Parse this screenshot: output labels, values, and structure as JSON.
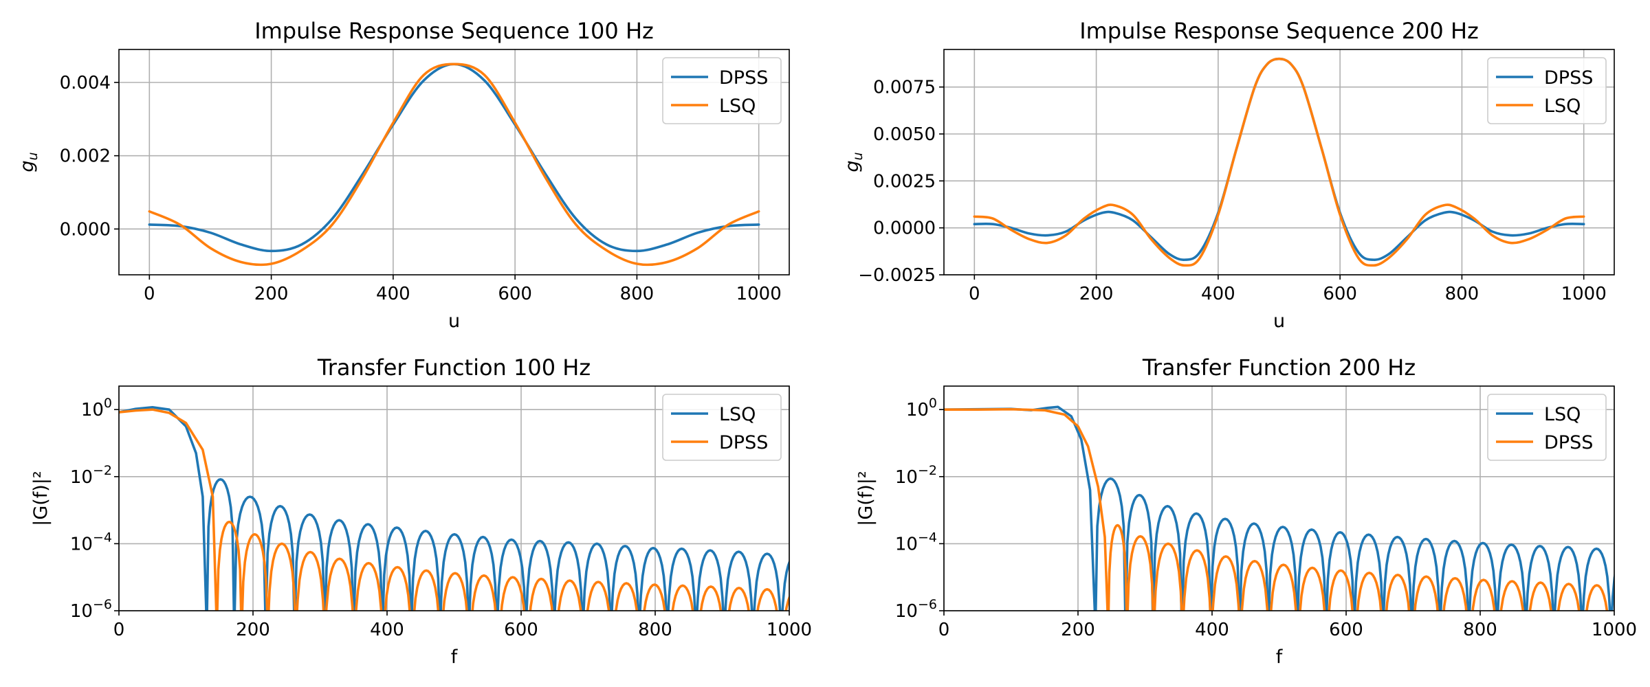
{
  "colors": {
    "blue": "#1f77b4",
    "orange": "#ff7f0e"
  },
  "chart_data": [
    {
      "id": "impulse-100",
      "type": "line",
      "title": "Impulse Response Sequence 100 Hz",
      "xlabel": "u",
      "ylabel": "g",
      "ylabel_sub": "u",
      "scale": "linear",
      "xlim": [
        -50,
        1050
      ],
      "ylim": [
        -0.00125,
        0.0049
      ],
      "xticks": [
        0,
        200,
        400,
        600,
        800,
        1000
      ],
      "xtick_labels": [
        "0",
        "200",
        "400",
        "600",
        "800",
        "1000"
      ],
      "yticks": [
        0.0,
        0.002,
        0.004
      ],
      "ytick_labels": [
        "0.000",
        "0.002",
        "0.004"
      ],
      "legend": [
        "DPSS",
        "LSQ"
      ],
      "legend_colors": [
        "#1f77b4",
        "#ff7f0e"
      ],
      "legend_loc": "upper right",
      "series": [
        {
          "name": "DPSS",
          "color": "#1f77b4",
          "x": [
            0,
            50,
            100,
            150,
            200,
            250,
            300,
            350,
            400,
            450,
            500,
            550,
            600,
            650,
            700,
            750,
            800,
            850,
            900,
            950,
            1000
          ],
          "y": [
            0.00012,
            8e-05,
            -0.0001,
            -0.00042,
            -0.0006,
            -0.00042,
            0.00028,
            0.0015,
            0.00285,
            0.00405,
            0.0045,
            0.00405,
            0.00285,
            0.0015,
            0.00028,
            -0.00042,
            -0.0006,
            -0.00042,
            -0.0001,
            8e-05,
            0.00012
          ]
        },
        {
          "name": "LSQ",
          "color": "#ff7f0e",
          "x": [
            0,
            50,
            100,
            150,
            200,
            250,
            300,
            350,
            400,
            450,
            500,
            550,
            600,
            650,
            700,
            750,
            800,
            850,
            900,
            950,
            1000
          ],
          "y": [
            0.00048,
            0.00012,
            -0.00052,
            -0.0009,
            -0.00095,
            -0.00058,
            0.00012,
            0.0014,
            0.0029,
            0.0042,
            0.0045,
            0.0042,
            0.0029,
            0.0014,
            0.00012,
            -0.00058,
            -0.00095,
            -0.0009,
            -0.00052,
            0.00012,
            0.00048
          ]
        }
      ]
    },
    {
      "id": "impulse-200",
      "type": "line",
      "title": "Impulse Response Sequence 200 Hz",
      "xlabel": "u",
      "ylabel": "g",
      "ylabel_sub": "u",
      "scale": "linear",
      "xlim": [
        -50,
        1050
      ],
      "ylim": [
        -0.0025,
        0.0095
      ],
      "xticks": [
        0,
        200,
        400,
        600,
        800,
        1000
      ],
      "xtick_labels": [
        "0",
        "200",
        "400",
        "600",
        "800",
        "1000"
      ],
      "yticks": [
        -0.0025,
        0.0,
        0.0025,
        0.005,
        0.0075
      ],
      "ytick_labels": [
        "−0.0025",
        "0.0000",
        "0.0025",
        "0.0050",
        "0.0075"
      ],
      "legend": [
        "DPSS",
        "LSQ"
      ],
      "legend_colors": [
        "#1f77b4",
        "#ff7f0e"
      ],
      "legend_loc": "upper right",
      "series": [
        {
          "name": "DPSS",
          "color": "#1f77b4",
          "x": [
            0,
            30,
            60,
            90,
            120,
            150,
            180,
            210,
            230,
            260,
            290,
            320,
            345,
            370,
            400,
            430,
            460,
            480,
            500,
            520,
            540,
            570,
            600,
            630,
            655,
            680,
            710,
            740,
            770,
            790,
            820,
            850,
            880,
            910,
            940,
            970,
            1000
          ],
          "y": [
            0.0002,
            0.0002,
            0.0,
            -0.0003,
            -0.0004,
            -0.0002,
            0.0004,
            0.0008,
            0.0008,
            0.0004,
            -0.0005,
            -0.0014,
            -0.0017,
            -0.0013,
            0.0008,
            0.0042,
            0.0075,
            0.0087,
            0.009,
            0.0087,
            0.0075,
            0.0042,
            0.0008,
            -0.0013,
            -0.0017,
            -0.0014,
            -0.0005,
            0.0004,
            0.0008,
            0.0008,
            0.0004,
            -0.0002,
            -0.0004,
            -0.0003,
            0.0,
            0.0002,
            0.0002
          ]
        },
        {
          "name": "LSQ",
          "color": "#ff7f0e",
          "x": [
            0,
            30,
            60,
            90,
            120,
            150,
            180,
            210,
            230,
            260,
            290,
            320,
            345,
            370,
            400,
            430,
            460,
            480,
            500,
            520,
            540,
            570,
            600,
            630,
            655,
            680,
            710,
            740,
            770,
            790,
            820,
            850,
            880,
            910,
            940,
            970,
            1000
          ],
          "y": [
            0.0006,
            0.0005,
            -0.0001,
            -0.0006,
            -0.0008,
            -0.0004,
            0.0005,
            0.0011,
            0.0012,
            0.0007,
            -0.0006,
            -0.0016,
            -0.002,
            -0.0016,
            0.0007,
            0.0042,
            0.0075,
            0.0087,
            0.009,
            0.0087,
            0.0075,
            0.0042,
            0.0007,
            -0.0016,
            -0.002,
            -0.0016,
            -0.0006,
            0.0007,
            0.0012,
            0.0011,
            0.0005,
            -0.0004,
            -0.0008,
            -0.0006,
            -0.0001,
            0.0005,
            0.0006
          ]
        }
      ]
    },
    {
      "id": "transfer-100",
      "type": "line",
      "title": "Transfer Function 100 Hz",
      "xlabel": "f",
      "ylabel": "|G(f)|²",
      "scale": "log",
      "xlim": [
        0,
        1000
      ],
      "ylim_exp": [
        -6,
        0.7
      ],
      "xticks": [
        0,
        200,
        400,
        600,
        800,
        1000
      ],
      "xtick_labels": [
        "0",
        "200",
        "400",
        "600",
        "800",
        "1000"
      ],
      "yticks_exp": [
        0,
        -2,
        -4,
        -6
      ],
      "ytick_base": "10",
      "ytick_exponents": [
        "0",
        "−2",
        "−4",
        "−6"
      ],
      "legend": [
        "LSQ",
        "DPSS"
      ],
      "legend_colors": [
        "#1f77b4",
        "#ff7f0e"
      ],
      "legend_loc": "upper right",
      "series": [
        {
          "name": "LSQ",
          "color": "#1f77b4",
          "mainlobe": {
            "f": [
              0,
              25,
              50,
              75,
              100,
              115,
              125,
              131
            ],
            "log10": [
              -0.08,
              0.02,
              0.07,
              0.0,
              -0.5,
              -1.3,
              -2.6,
              -6.5
            ]
          },
          "nulls": [
            131,
            172,
            219,
            262,
            307,
            350,
            393,
            436,
            479,
            522,
            564,
            607,
            649,
            692,
            734,
            776,
            818,
            861,
            903,
            946,
            988
          ],
          "peaks_log10": [
            -2.08,
            -2.6,
            -2.88,
            -3.13,
            -3.3,
            -3.42,
            -3.52,
            -3.62,
            -3.72,
            -3.8,
            -3.88,
            -3.92,
            -3.96,
            -4.0,
            -4.07,
            -4.13,
            -4.15,
            -4.2,
            -4.24,
            -4.3,
            -4.35
          ]
        },
        {
          "name": "DPSS",
          "color": "#ff7f0e",
          "mainlobe": {
            "f": [
              0,
              25,
              50,
              75,
              100,
              125,
              140,
              146
            ],
            "log10": [
              -0.08,
              -0.03,
              0.0,
              -0.1,
              -0.4,
              -1.2,
              -2.6,
              -6.5
            ]
          },
          "nulls": [
            146,
            183,
            222,
            264,
            307,
            351,
            394,
            437,
            480,
            523,
            566,
            609,
            651,
            694,
            736,
            778,
            820,
            862,
            904,
            946,
            988
          ],
          "peaks_log10": [
            -3.35,
            -3.72,
            -4.0,
            -4.25,
            -4.45,
            -4.58,
            -4.7,
            -4.8,
            -4.88,
            -4.95,
            -5.0,
            -5.05,
            -5.1,
            -5.14,
            -5.18,
            -5.22,
            -5.25,
            -5.28,
            -5.32,
            -5.36,
            -5.4
          ]
        }
      ]
    },
    {
      "id": "transfer-200",
      "type": "line",
      "title": "Transfer Function 200 Hz",
      "xlabel": "f",
      "ylabel": "|G(f)|²",
      "scale": "log",
      "xlim": [
        0,
        1000
      ],
      "ylim_exp": [
        -6,
        0.7
      ],
      "xticks": [
        0,
        200,
        400,
        600,
        800,
        1000
      ],
      "xtick_labels": [
        "0",
        "200",
        "400",
        "600",
        "800",
        "1000"
      ],
      "yticks_exp": [
        0,
        -2,
        -4,
        -6
      ],
      "ytick_base": "10",
      "ytick_exponents": [
        "0",
        "−2",
        "−4",
        "−6"
      ],
      "legend": [
        "LSQ",
        "DPSS"
      ],
      "legend_colors": [
        "#1f77b4",
        "#ff7f0e"
      ],
      "legend_loc": "upper right",
      "series": [
        {
          "name": "LSQ",
          "color": "#1f77b4",
          "mainlobe": {
            "f": [
              0,
              50,
              100,
              130,
              155,
              170,
              190,
              205,
              218,
              226
            ],
            "log10": [
              0.0,
              0.01,
              0.02,
              -0.02,
              0.05,
              0.08,
              -0.2,
              -0.9,
              -2.4,
              -6.5
            ]
          },
          "nulls": [
            226,
            271,
            312,
            355,
            398,
            441,
            484,
            527,
            570,
            612,
            655,
            698,
            740,
            783,
            825,
            868,
            910,
            952,
            995
          ],
          "peaks_log10": [
            -2.06,
            -2.55,
            -2.88,
            -3.1,
            -3.26,
            -3.4,
            -3.5,
            -3.58,
            -3.66,
            -3.73,
            -3.8,
            -3.86,
            -3.92,
            -3.98,
            -4.03,
            -4.07,
            -4.1,
            -4.15,
            -4.18
          ]
        },
        {
          "name": "DPSS",
          "color": "#ff7f0e",
          "mainlobe": {
            "f": [
              0,
              50,
              100,
              150,
              180,
              200,
              215,
              230,
              240,
              245
            ],
            "log10": [
              0.0,
              0.0,
              0.01,
              -0.02,
              -0.15,
              -0.5,
              -1.1,
              -2.3,
              -3.8,
              -6.5
            ]
          },
          "nulls": [
            245,
            273,
            313,
            356,
            399,
            442,
            485,
            528,
            571,
            613,
            656,
            698,
            741,
            784,
            826,
            869,
            911,
            953,
            995
          ],
          "peaks_log10": [
            -3.45,
            -3.78,
            -4.0,
            -4.2,
            -4.38,
            -4.52,
            -4.63,
            -4.72,
            -4.8,
            -4.87,
            -4.93,
            -4.98,
            -5.03,
            -5.08,
            -5.12,
            -5.16,
            -5.2,
            -5.24,
            -5.28
          ]
        }
      ]
    }
  ]
}
